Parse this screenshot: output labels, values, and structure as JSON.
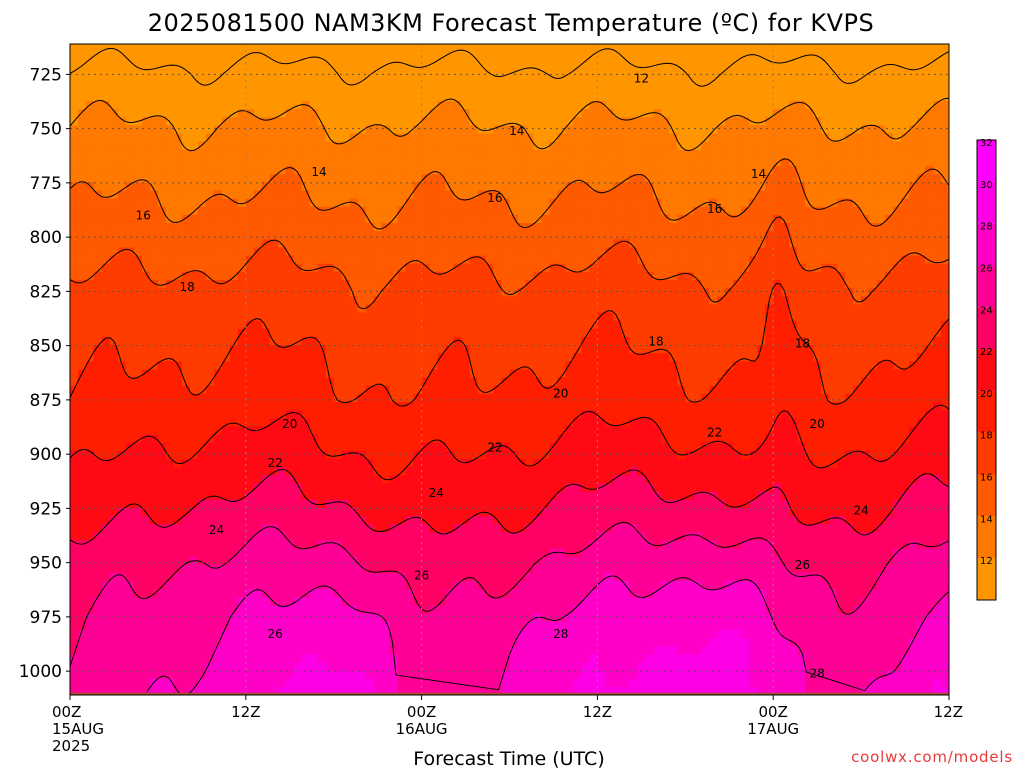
{
  "title": "2025081500 NAM3KM Forecast Temperature (ºC) for KVPS",
  "credit": "coolwx.com/models",
  "chart_data": {
    "type": "heatmap",
    "title": "2025081500 NAM3KM Forecast Temperature (ºC) for KVPS",
    "xlabel": "Forecast Time (UTC)",
    "ylabel": "",
    "x_ticks": [
      {
        "hour": 0,
        "lines": [
          "00Z",
          "15AUG",
          "2025"
        ]
      },
      {
        "hour": 12,
        "lines": [
          "12Z"
        ]
      },
      {
        "hour": 24,
        "lines": [
          "00Z",
          "16AUG"
        ]
      },
      {
        "hour": 36,
        "lines": [
          "12Z"
        ]
      },
      {
        "hour": 48,
        "lines": [
          "00Z",
          "17AUG"
        ]
      },
      {
        "hour": 60,
        "lines": [
          "12Z"
        ]
      }
    ],
    "xlim": [
      0,
      60
    ],
    "y_ticks": [
      725,
      750,
      775,
      800,
      825,
      850,
      875,
      900,
      925,
      950,
      975,
      1000
    ],
    "ylim": [
      1011,
      711
    ],
    "y_unit": "hPa",
    "surface_pressure": 1010,
    "grid": true,
    "colorbar": {
      "ticks": [
        12,
        14,
        16,
        18,
        20,
        22,
        24,
        26,
        28,
        30,
        32
      ],
      "colors": [
        "#ff9600",
        "#ff7800",
        "#ff5a00",
        "#ff3c00",
        "#ff1e00",
        "#ff0a14",
        "#ff0064",
        "#ff0096",
        "#ff00c8",
        "#ff00e6",
        "#ff00ff"
      ]
    },
    "contour_labels": [
      {
        "value": "12",
        "hour": 39.0,
        "p": 727
      },
      {
        "value": "14",
        "hour": 17.0,
        "p": 770
      },
      {
        "value": "14",
        "hour": 30.5,
        "p": 751
      },
      {
        "value": "14",
        "hour": 47.0,
        "p": 771
      },
      {
        "value": "16",
        "hour": 5.0,
        "p": 790
      },
      {
        "value": "16",
        "hour": 29.0,
        "p": 782
      },
      {
        "value": "16",
        "hour": 44.0,
        "p": 787
      },
      {
        "value": "18",
        "hour": 8.0,
        "p": 823
      },
      {
        "value": "18",
        "hour": 40.0,
        "p": 848
      },
      {
        "value": "18",
        "hour": 50.0,
        "p": 849
      },
      {
        "value": "20",
        "hour": 15.0,
        "p": 886
      },
      {
        "value": "20",
        "hour": 33.5,
        "p": 872
      },
      {
        "value": "20",
        "hour": 51.0,
        "p": 886
      },
      {
        "value": "22",
        "hour": 14.0,
        "p": 904
      },
      {
        "value": "22",
        "hour": 29.0,
        "p": 897
      },
      {
        "value": "22",
        "hour": 44.0,
        "p": 890
      },
      {
        "value": "24",
        "hour": 10.0,
        "p": 935
      },
      {
        "value": "24",
        "hour": 25.0,
        "p": 918
      },
      {
        "value": "24",
        "hour": 54.0,
        "p": 926
      },
      {
        "value": "26",
        "hour": 14.0,
        "p": 983
      },
      {
        "value": "26",
        "hour": 24.0,
        "p": 956
      },
      {
        "value": "26",
        "hour": 50.0,
        "p": 951
      },
      {
        "value": "28",
        "hour": 33.5,
        "p": 983
      },
      {
        "value": "28",
        "hour": 51.0,
        "p": 1001
      }
    ]
  }
}
